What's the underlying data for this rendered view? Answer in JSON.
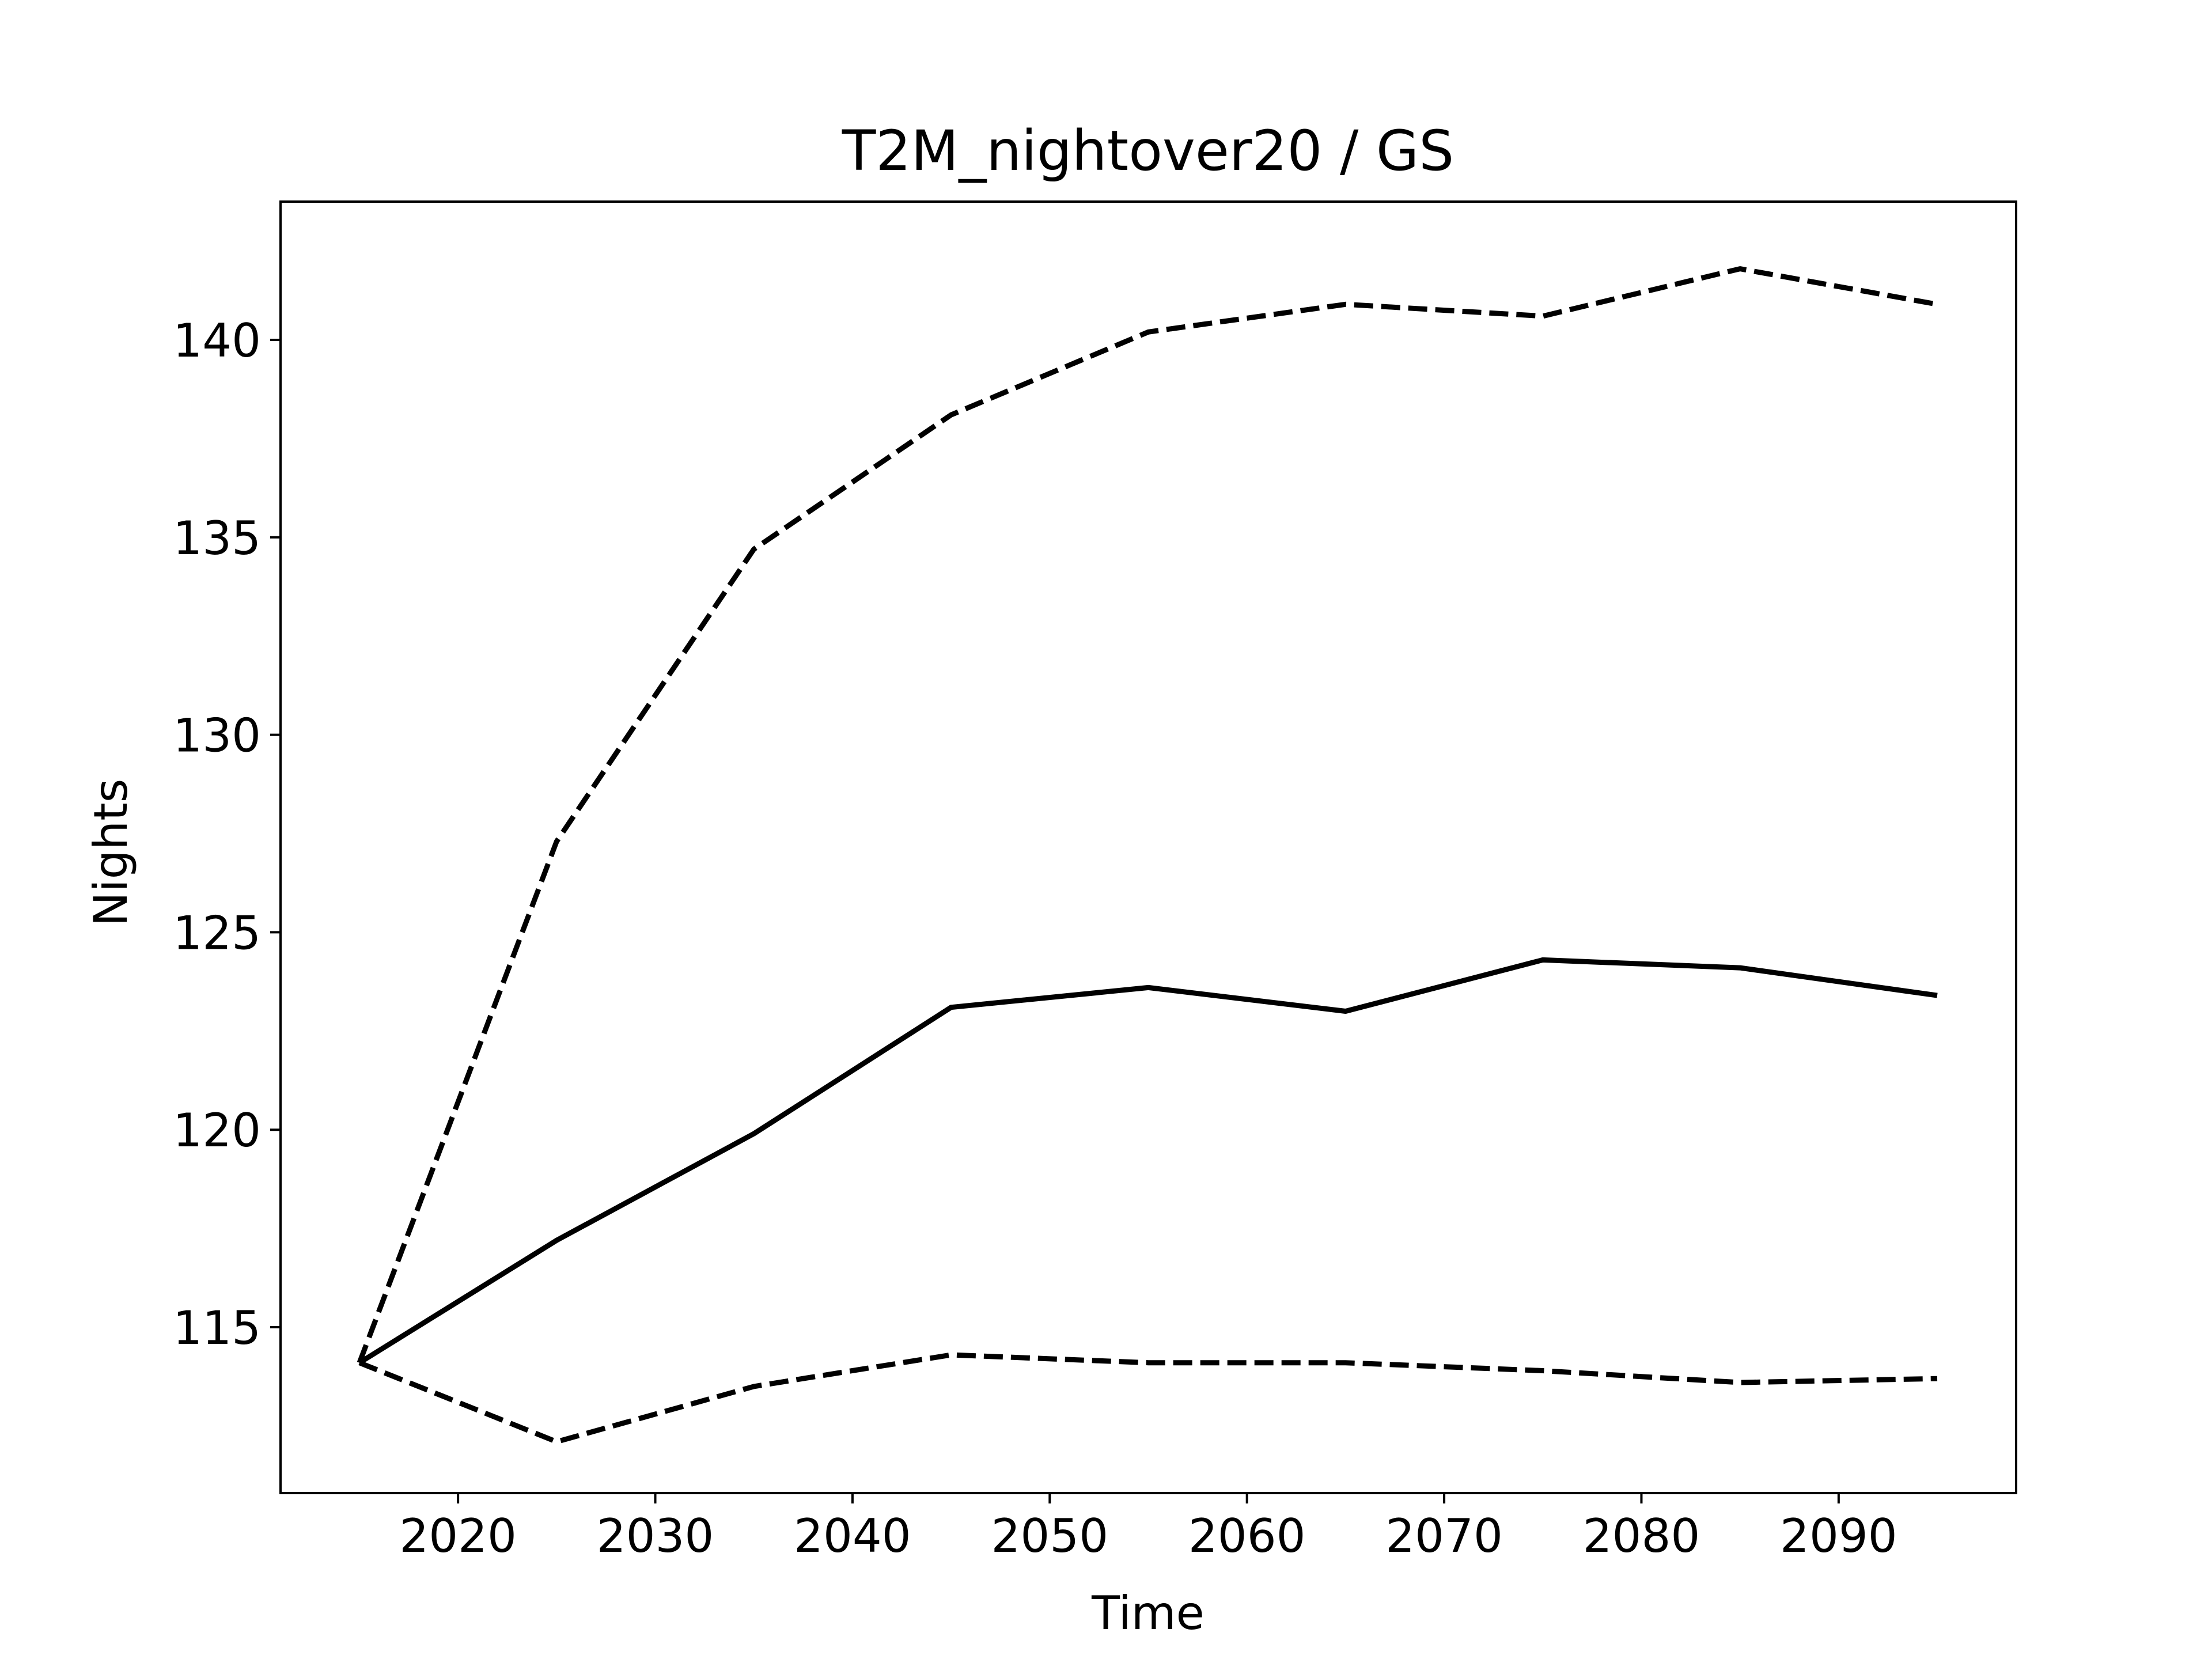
{
  "chart_data": {
    "type": "line",
    "title": "T2M_nightover20 / GS",
    "xlabel": "Time",
    "ylabel": "Nights",
    "xlim": [
      2011,
      2099
    ],
    "ylim": [
      110.8,
      143.5
    ],
    "xticks": [
      2020,
      2030,
      2040,
      2050,
      2060,
      2070,
      2080,
      2090
    ],
    "yticks": [
      115,
      120,
      125,
      130,
      135,
      140
    ],
    "grid": false,
    "legend": "none",
    "x": [
      2015,
      2025,
      2035,
      2045,
      2055,
      2065,
      2075,
      2085,
      2095
    ],
    "series": [
      {
        "style": "dashed",
        "color": "#000000",
        "values": [
          114.1,
          127.3,
          134.7,
          138.1,
          140.2,
          140.9,
          140.6,
          141.8,
          140.9
        ]
      },
      {
        "style": "solid",
        "color": "#000000",
        "values": [
          114.1,
          117.2,
          119.9,
          123.1,
          123.6,
          123.0,
          124.3,
          124.1,
          123.4
        ]
      },
      {
        "style": "dashed",
        "color": "#000000",
        "values": [
          114.1,
          112.1,
          113.5,
          114.3,
          114.1,
          114.1,
          113.9,
          113.6,
          113.7
        ]
      }
    ]
  }
}
